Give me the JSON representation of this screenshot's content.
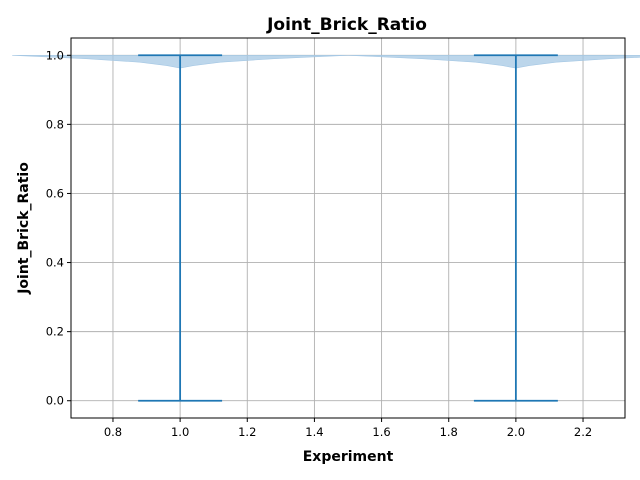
{
  "chart_data": {
    "type": "violin",
    "title": "Joint_Brick_Ratio",
    "xlabel": "Experiment",
    "ylabel": "Joint_Brick_Ratio",
    "xlim": [
      0.675,
      2.325
    ],
    "ylim": [
      -0.05,
      1.05
    ],
    "xticks": [
      "0.8",
      "1.0",
      "1.2",
      "1.4",
      "1.6",
      "1.8",
      "2.0",
      "2.2"
    ],
    "yticks": [
      "0.0",
      "0.2",
      "0.4",
      "0.6",
      "0.8",
      "1.0"
    ],
    "grid": true,
    "violin_widths": 0.5,
    "violins": [
      {
        "position": 1.0,
        "min": 0.0,
        "max": 1.0,
        "density": [
          [
            0.963,
            0.0
          ],
          [
            0.97,
            0.04
          ],
          [
            0.98,
            0.12
          ],
          [
            0.99,
            0.28
          ],
          [
            1.0,
            0.5
          ]
        ]
      },
      {
        "position": 2.0,
        "min": 0.0,
        "max": 1.0,
        "density": [
          [
            0.963,
            0.0
          ],
          [
            0.97,
            0.04
          ],
          [
            0.98,
            0.12
          ],
          [
            0.99,
            0.28
          ],
          [
            1.0,
            0.5
          ]
        ]
      }
    ],
    "colors": {
      "body": "#a6c8e4",
      "lines": "#1f77b4"
    }
  }
}
